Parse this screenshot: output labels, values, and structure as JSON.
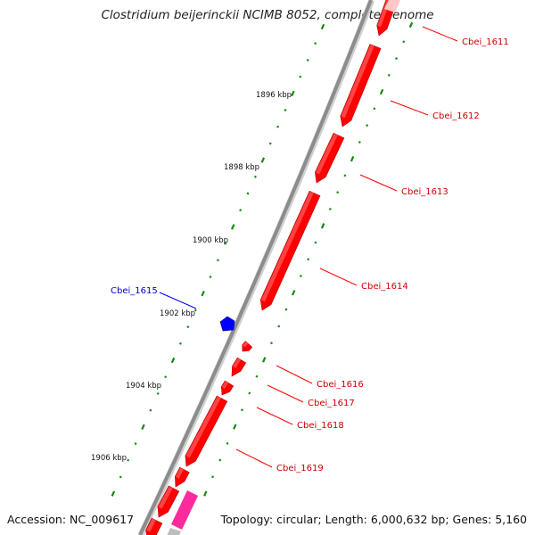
{
  "title": "Clostridium beijerinckii NCIMB 8052, complete genome",
  "footer": {
    "accession": "Accession: NC_009617",
    "summary": "Topology: circular; Length: 6,000,632 bp; Genes: 5,160"
  },
  "scale_labels": [
    "1896 kbp",
    "1898 kbp",
    "1900 kbp",
    "1902 kbp",
    "1904 kbp",
    "1906 kbp"
  ],
  "genes": [
    {
      "label": "Cbei_1611",
      "strand": "+",
      "color": "#ff0000"
    },
    {
      "label": "Cbei_1612",
      "strand": "+",
      "color": "#ff0000"
    },
    {
      "label": "Cbei_1613",
      "strand": "+",
      "color": "#ff0000"
    },
    {
      "label": "Cbei_1614",
      "strand": "+",
      "color": "#ff0000"
    },
    {
      "label": "Cbei_1615",
      "strand": "-",
      "color": "#0000ff"
    },
    {
      "label": "Cbei_1616",
      "strand": "+",
      "color": "#ff0000"
    },
    {
      "label": "Cbei_1617",
      "strand": "+",
      "color": "#ff0000"
    },
    {
      "label": "Cbei_1618",
      "strand": "+",
      "color": "#ff0000"
    },
    {
      "label": "Cbei_1619",
      "strand": "+",
      "color": "#ff0000"
    }
  ],
  "colors": {
    "plus_strand": "#ff0000",
    "minus_strand": "#0000ff",
    "backbone": "#8c8c8c",
    "scale_ticks": "#138a13",
    "other_feature": "#ff2a9b"
  }
}
